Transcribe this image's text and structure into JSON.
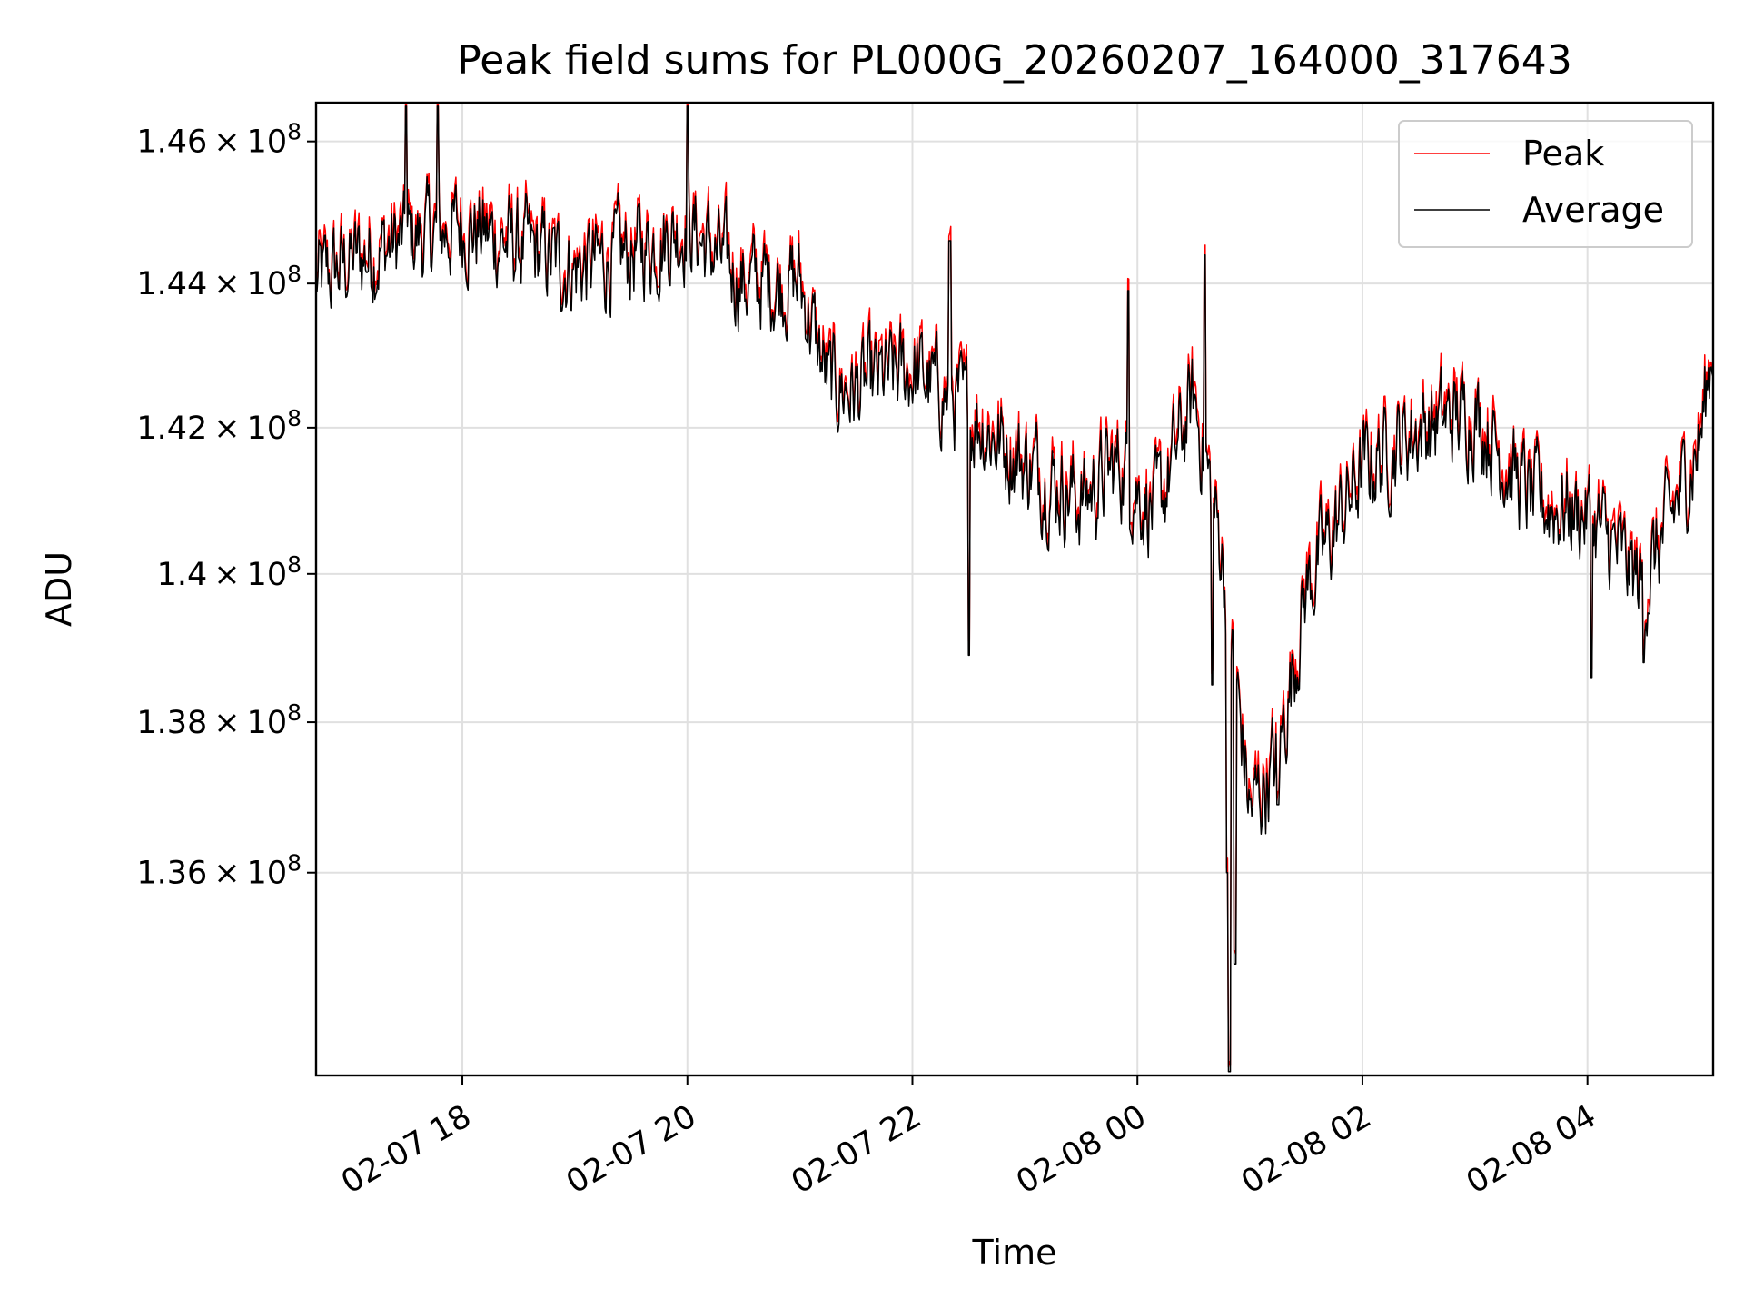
{
  "chart_data": {
    "type": "line",
    "title": "Peak field sums for PL000G_20260207_164000_317643",
    "xlabel": "Time",
    "ylabel": "ADU",
    "x_range": [
      "2026-02-07 16:42",
      "2026-02-08 05:07"
    ],
    "ylim": [
      133.35,
      146.55
    ],
    "y_scale_note": "log",
    "y_ticks": [
      {
        "value": 136,
        "mantissa": "1.36",
        "exp": "8"
      },
      {
        "value": 138,
        "mantissa": "1.38",
        "exp": "8"
      },
      {
        "value": 140,
        "mantissa": "1.4",
        "exp": "8"
      },
      {
        "value": 142,
        "mantissa": "1.42",
        "exp": "8"
      },
      {
        "value": 144,
        "mantissa": "1.44",
        "exp": "8"
      },
      {
        "value": 146,
        "mantissa": "1.46",
        "exp": "8"
      }
    ],
    "x_ticks": [
      {
        "time": "2026-02-07 18:00",
        "label": "02-07 18"
      },
      {
        "time": "2026-02-07 20:00",
        "label": "02-07 20"
      },
      {
        "time": "2026-02-07 22:00",
        "label": "02-07 22"
      },
      {
        "time": "2026-02-08 00:00",
        "label": "02-08 00"
      },
      {
        "time": "2026-02-08 02:00",
        "label": "02-08 02"
      },
      {
        "time": "2026-02-08 04:00",
        "label": "02-08 04"
      }
    ],
    "grid": true,
    "legend_position": "top-right",
    "y_unit_note": "values in units of 1e6 ADU",
    "series": [
      {
        "name": "Peak",
        "color": "#ff0000",
        "offset": 0.1
      },
      {
        "name": "Average",
        "color": "#000000",
        "offset": 0.0
      }
    ],
    "trend": {
      "times": [
        "2026-02-07 16:42",
        "2026-02-07 17:00",
        "2026-02-07 17:30",
        "2026-02-07 18:00",
        "2026-02-07 18:30",
        "2026-02-07 19:00",
        "2026-02-07 19:30",
        "2026-02-07 20:00",
        "2026-02-07 20:30",
        "2026-02-07 21:00",
        "2026-02-07 21:15",
        "2026-02-07 21:30",
        "2026-02-07 22:00",
        "2026-02-07 22:30",
        "2026-02-07 23:00",
        "2026-02-07 23:30",
        "2026-02-07 23:50",
        "2026-02-08 00:10",
        "2026-02-08 00:30",
        "2026-02-08 00:45",
        "2026-02-08 01:00",
        "2026-02-08 01:15",
        "2026-02-08 01:30",
        "2026-02-08 02:00",
        "2026-02-08 02:30",
        "2026-02-08 03:00",
        "2026-02-08 03:30",
        "2026-02-08 04:00",
        "2026-02-08 04:30",
        "2026-02-08 05:00",
        "2026-02-08 05:07"
      ],
      "values": [
        144.0,
        144.3,
        144.6,
        144.8,
        144.5,
        144.2,
        144.4,
        144.8,
        144.0,
        144.0,
        142.6,
        142.5,
        142.8,
        142.2,
        141.5,
        141.0,
        141.5,
        140.8,
        142.4,
        140.3,
        136.8,
        137.5,
        139.8,
        141.4,
        142.0,
        142.2,
        141.0,
        140.8,
        139.8,
        141.8,
        143.2
      ]
    },
    "spikes": [
      {
        "time": "2026-02-07 17:30",
        "value": 146.5
      },
      {
        "time": "2026-02-07 17:47",
        "value": 146.5
      },
      {
        "time": "2026-02-07 20:00",
        "value": 146.5
      },
      {
        "time": "2026-02-07 22:20",
        "value": 144.6
      },
      {
        "time": "2026-02-07 22:30",
        "value": 138.9
      },
      {
        "time": "2026-02-07 23:55",
        "value": 143.9
      },
      {
        "time": "2026-02-08 00:36",
        "value": 144.4
      },
      {
        "time": "2026-02-08 00:40",
        "value": 138.5
      },
      {
        "time": "2026-02-08 00:48",
        "value": 136.0
      },
      {
        "time": "2026-02-08 00:49",
        "value": 133.4
      },
      {
        "time": "2026-02-08 00:52",
        "value": 134.8
      },
      {
        "time": "2026-02-08 01:15",
        "value": 136.9
      },
      {
        "time": "2026-02-08 04:02",
        "value": 138.6
      },
      {
        "time": "2026-02-08 04:30",
        "value": 138.8
      }
    ],
    "noise_amplitude": 0.55
  }
}
